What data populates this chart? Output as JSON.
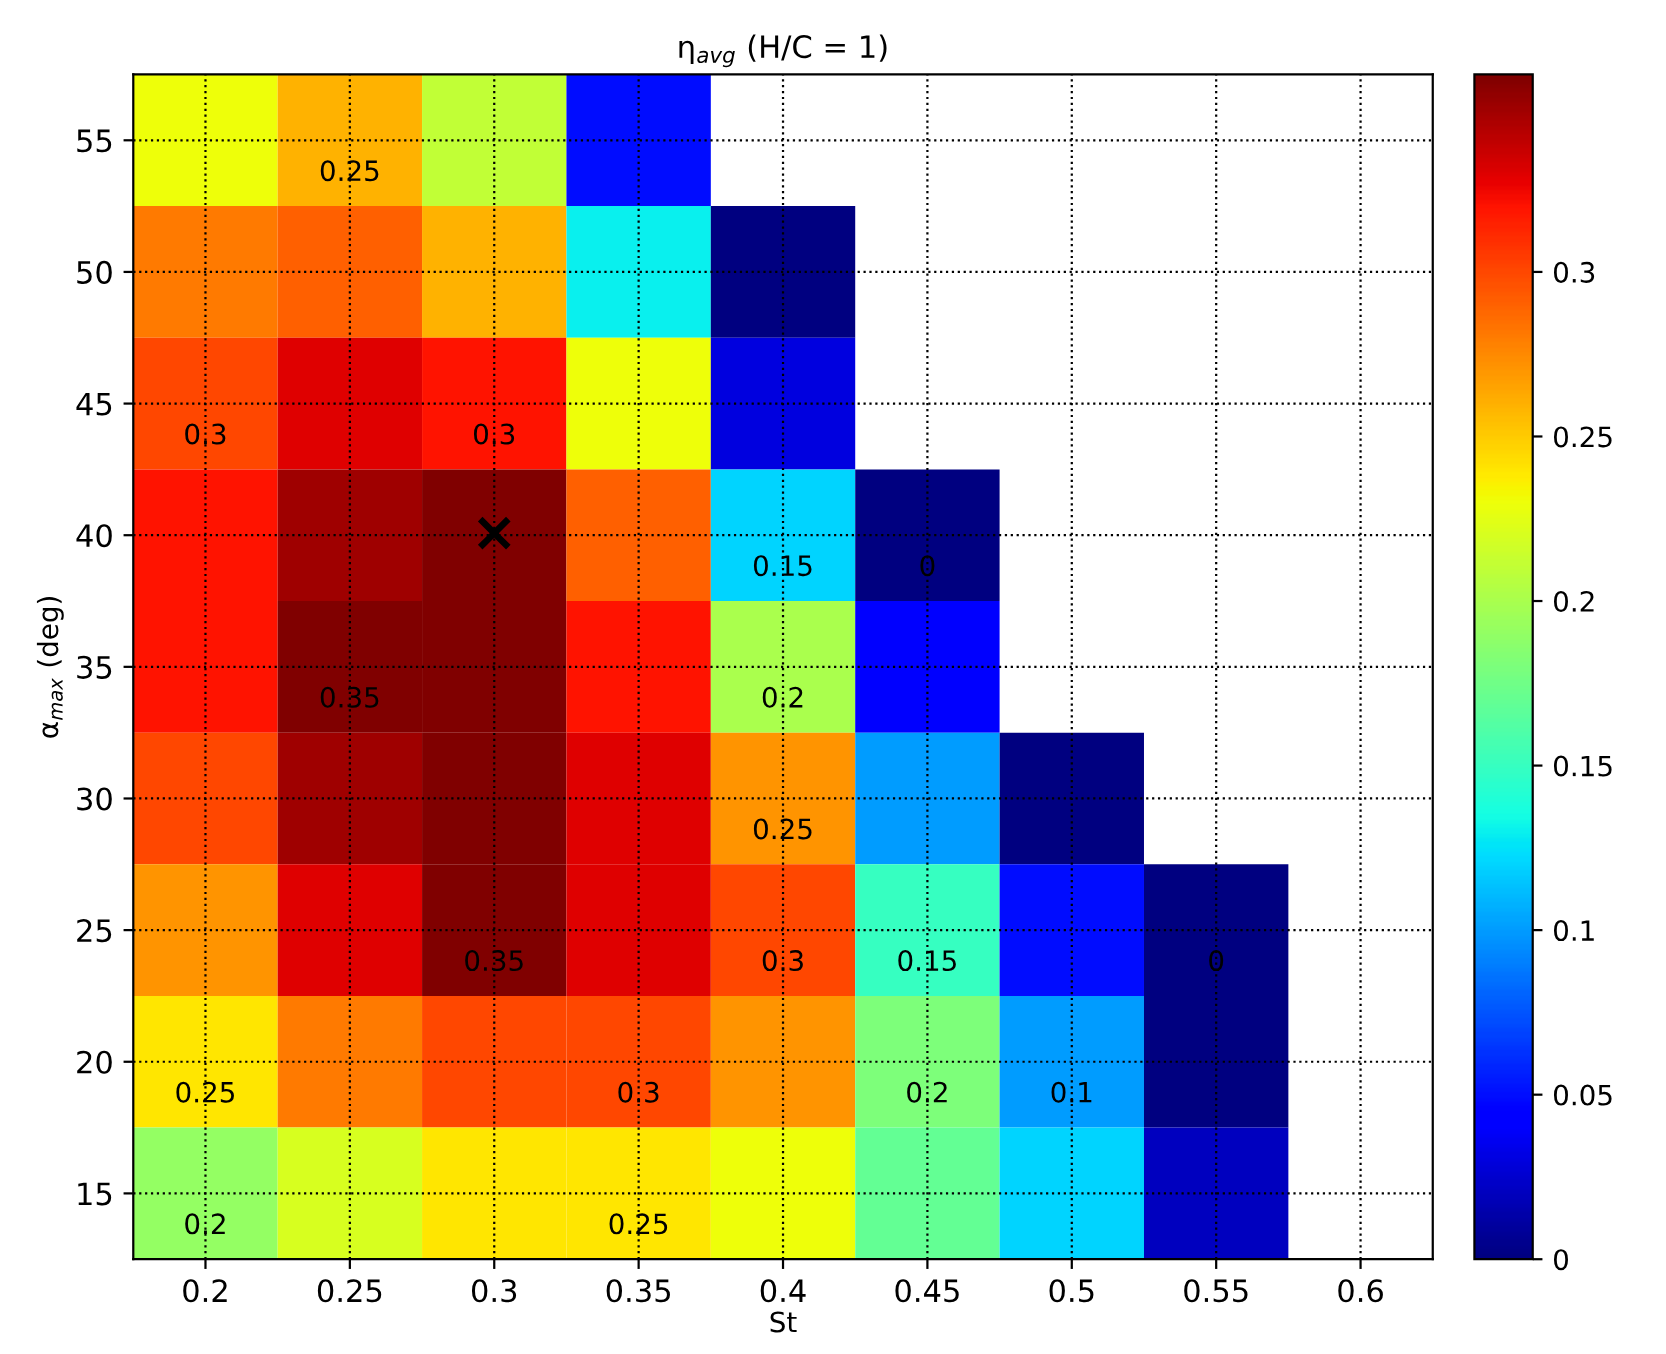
{
  "chart_data": {
    "type": "heatmap",
    "title": "η$_{avg}$ (H/C = 1)",
    "xlabel": "St",
    "ylabel": "α$_{max}$ (deg)",
    "categories": [
      "0.2",
      "0.25",
      "0.3",
      "0.35",
      "0.4",
      "0.45",
      "0.5",
      "0.55",
      "0.6"
    ],
    "y_categories": [
      "55",
      "50",
      "45",
      "40",
      "35",
      "30",
      "25",
      "20",
      "15"
    ],
    "cells": [
      [
        0.23,
        0.26,
        0.21,
        0.05,
        null,
        null,
        null,
        null,
        null
      ],
      [
        0.28,
        0.29,
        0.26,
        0.13,
        0.0,
        null,
        null,
        null,
        null
      ],
      [
        0.3,
        0.33,
        0.32,
        0.23,
        0.03,
        null,
        null,
        null,
        null
      ],
      [
        0.32,
        0.35,
        0.36,
        0.29,
        0.12,
        0.0,
        null,
        null,
        null
      ],
      [
        0.32,
        0.36,
        0.36,
        0.32,
        0.2,
        0.04,
        null,
        null,
        null
      ],
      [
        0.3,
        0.35,
        0.36,
        0.33,
        0.27,
        0.1,
        0.0,
        null,
        null
      ],
      [
        0.27,
        0.33,
        0.36,
        0.33,
        0.3,
        0.15,
        0.05,
        0.0,
        null
      ],
      [
        0.24,
        0.28,
        0.3,
        0.3,
        0.27,
        0.18,
        0.1,
        0.0,
        null
      ],
      [
        0.19,
        0.22,
        0.24,
        0.24,
        0.23,
        0.17,
        0.12,
        0.02,
        null
      ]
    ],
    "clim": [
      0,
      0.36
    ],
    "cticks": [
      0,
      0.05,
      0.1,
      0.15,
      0.2,
      0.25,
      0.3
    ],
    "grid": true,
    "annotations": [
      "×",
      "0.25",
      "0.3",
      "0.3",
      "0.35",
      "0.35",
      "0.3",
      "0.3",
      "0.25",
      "0.2",
      "0.25",
      "0.2",
      "0.15",
      "0.1",
      "0",
      "0",
      "0.15",
      "0.2",
      "0.25"
    ]
  }
}
